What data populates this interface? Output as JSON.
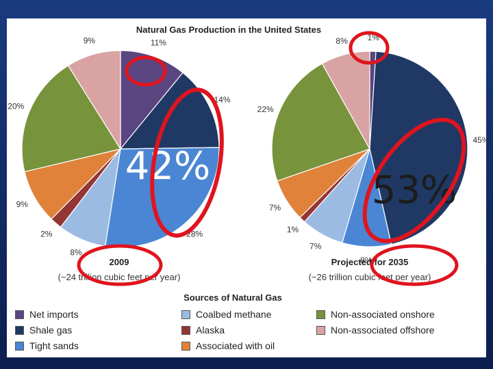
{
  "slide": {
    "background": "#0e2356"
  },
  "chart_data": [
    {
      "type": "pie",
      "title": "Natural Gas Production in the United States",
      "caption": "2009",
      "subcaption": "(~24 trillion cubic feet per year)",
      "callout": "42%",
      "slices": [
        {
          "name": "Net imports",
          "value": 11,
          "label": "11%",
          "color": "#5b4580"
        },
        {
          "name": "Shale gas",
          "value": 14,
          "label": "14%",
          "color": "#1f3864"
        },
        {
          "name": "Tight sands",
          "value": 28,
          "label": "28%",
          "color": "#4a86d4"
        },
        {
          "name": "Coalbed methane",
          "value": 8,
          "label": "8%",
          "color": "#9bbbe3"
        },
        {
          "name": "Alaska",
          "value": 2,
          "label": "2%",
          "color": "#943634"
        },
        {
          "name": "Associated with oil",
          "value": 9,
          "label": "9%",
          "color": "#e0823a"
        },
        {
          "name": "Non-associated onshore",
          "value": 20,
          "label": "20%",
          "color": "#77933c"
        },
        {
          "name": "Non-associated offshore",
          "value": 9,
          "label": "9%",
          "color": "#d9a3a3"
        }
      ]
    },
    {
      "type": "pie",
      "caption": "Projected for 2035",
      "subcaption": "(~26 trillion cubic feet per year)",
      "callout": "53%",
      "slices": [
        {
          "name": "Net imports",
          "value": 1,
          "label": "1%",
          "color": "#5b4580"
        },
        {
          "name": "Shale gas",
          "value": 45,
          "label": "45%",
          "color": "#1f3864"
        },
        {
          "name": "Tight sands",
          "value": 8,
          "label": "8%",
          "color": "#4a86d4"
        },
        {
          "name": "Coalbed methane",
          "value": 7,
          "label": "7%",
          "color": "#9bbbe3"
        },
        {
          "name": "Alaska",
          "value": 1,
          "label": "1%",
          "color": "#943634"
        },
        {
          "name": "Associated with oil",
          "value": 7,
          "label": "7%",
          "color": "#e0823a"
        },
        {
          "name": "Non-associated onshore",
          "value": 22,
          "label": "22%",
          "color": "#77933c"
        },
        {
          "name": "Non-associated offshore",
          "value": 8,
          "label": "8%",
          "color": "#d9a3a3"
        }
      ]
    }
  ],
  "legend": {
    "title": "Sources of Natural Gas",
    "items": [
      {
        "label": "Net imports",
        "color": "#5b4580"
      },
      {
        "label": "Shale gas",
        "color": "#1f3864"
      },
      {
        "label": "Tight sands",
        "color": "#4a86d4"
      },
      {
        "label": "Coalbed methane",
        "color": "#9bbbe3"
      },
      {
        "label": "Alaska",
        "color": "#943634"
      },
      {
        "label": "Associated with oil",
        "color": "#e0823a"
      },
      {
        "label": "Non-associated onshore",
        "color": "#77933c"
      },
      {
        "label": "Non-associated offshore",
        "color": "#d9a3a3"
      }
    ]
  },
  "annotation_color": "#e0141e"
}
